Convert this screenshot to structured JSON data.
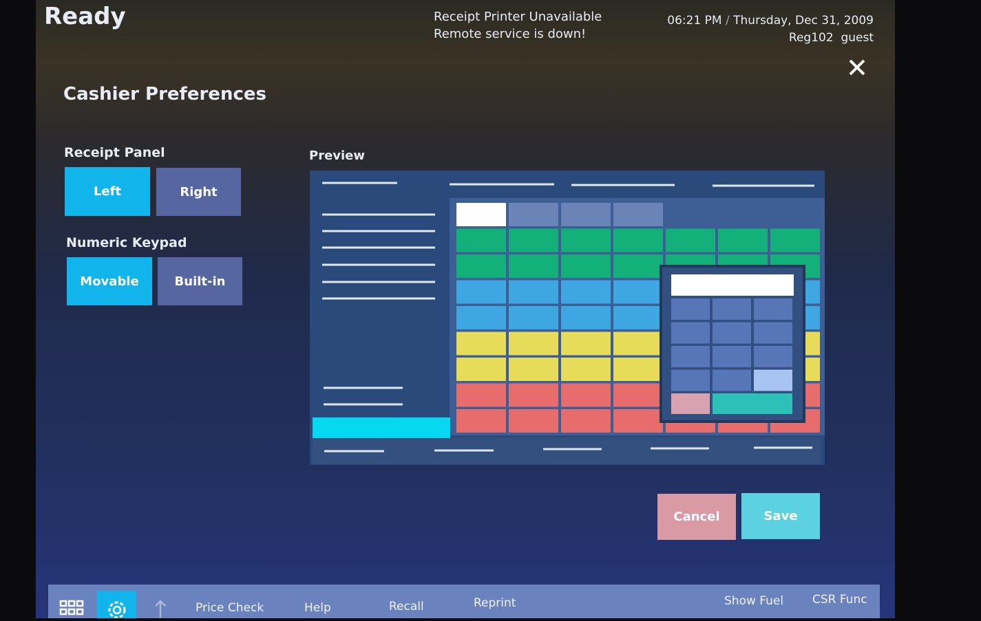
{
  "header": {
    "status": "Ready",
    "messages": [
      "Receipt Printer Unavailable",
      "Remote service is down!"
    ],
    "time": "06:21 PM",
    "separator": "/",
    "date": "Thursday, Dec 31, 2009",
    "register": "Reg102",
    "user": "guest"
  },
  "page": {
    "title": "Cashier Preferences",
    "receipt_panel": {
      "label": "Receipt Panel",
      "options": [
        "Left",
        "Right"
      ]
    },
    "numeric_keypad": {
      "label": "Numeric Keypad",
      "options": [
        "Movable",
        "Built-in"
      ]
    },
    "preview": {
      "label": "Preview"
    },
    "actions": {
      "cancel": "Cancel",
      "save": "Save"
    }
  },
  "toolbar": {
    "items": [
      "Price Check",
      "Help",
      "Recall",
      "Reprint",
      "Show Fuel",
      "CSR Func"
    ]
  }
}
